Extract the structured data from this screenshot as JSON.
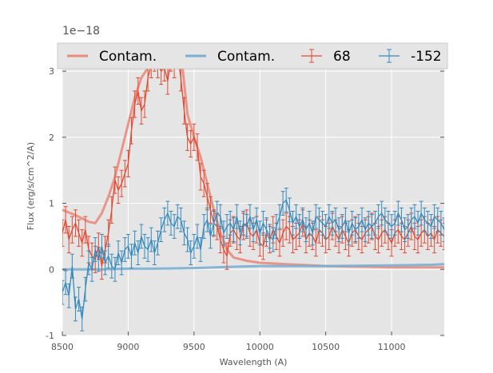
{
  "chart_data": {
    "type": "line",
    "xlabel": "Wavelength (A)",
    "ylabel": "Flux (erg/s/cm^2/A)",
    "offset_text": "1e−18",
    "xlim": [
      8500,
      11400
    ],
    "ylim": [
      -1,
      3.4
    ],
    "xticks": [
      8500,
      9000,
      9500,
      10000,
      10500,
      11000
    ],
    "yticks": [
      -1,
      0,
      1,
      2,
      3
    ],
    "grid": true,
    "legend_position": "top",
    "colors": {
      "red": "#e24a33",
      "blue": "#348abd",
      "red_contam": "#e88c7d",
      "blue_contam": "#7aaed2",
      "background": "#e5e5e5"
    },
    "series": [
      {
        "name": "Contam.",
        "kind": "contam",
        "color": "#e88c7d",
        "x": [
          8500,
          8600,
          8700,
          8750,
          8800,
          8850,
          8900,
          8950,
          9000,
          9050,
          9100,
          9150,
          9200,
          9250,
          9300,
          9350,
          9400,
          9450,
          9500,
          9550,
          9600,
          9650,
          9700,
          9750,
          9800,
          9900,
          10000,
          10200,
          10500,
          10800,
          11000,
          11400
        ],
        "y": [
          0.9,
          0.82,
          0.72,
          0.7,
          0.85,
          1.1,
          1.4,
          1.8,
          2.2,
          2.6,
          2.9,
          3.05,
          3.15,
          3.25,
          3.3,
          3.3,
          3.3,
          2.35,
          2.0,
          1.7,
          1.3,
          0.9,
          0.55,
          0.3,
          0.18,
          0.13,
          0.1,
          0.08,
          0.05,
          0.04,
          0.03,
          0.03
        ]
      },
      {
        "name": "Contam.",
        "kind": "contam",
        "color": "#7aaed2",
        "x": [
          8500,
          8800,
          9000,
          9200,
          9500,
          9800,
          10000,
          10500,
          11000,
          11300,
          11400
        ],
        "y": [
          0.0,
          0.0,
          0.01,
          0.01,
          0.02,
          0.04,
          0.05,
          0.05,
          0.06,
          0.07,
          0.08
        ]
      },
      {
        "name": "68",
        "kind": "errorbar",
        "color": "#e24a33",
        "x": [
          8500,
          8525,
          8550,
          8575,
          8600,
          8625,
          8650,
          8675,
          8700,
          8725,
          8750,
          8775,
          8800,
          8825,
          8850,
          8875,
          8900,
          8925,
          8950,
          8975,
          9000,
          9025,
          9050,
          9075,
          9100,
          9125,
          9150,
          9175,
          9200,
          9225,
          9250,
          9275,
          9300,
          9325,
          9350,
          9375,
          9400,
          9425,
          9450,
          9475,
          9500,
          9525,
          9550,
          9575,
          9600,
          9625,
          9650,
          9675,
          9700,
          9725,
          9750,
          9775,
          9800,
          9825,
          9850,
          9875,
          9900,
          9925,
          9950,
          9975,
          10000,
          10025,
          10050,
          10075,
          10100,
          10125,
          10150,
          10175,
          10200,
          10225,
          10250,
          10275,
          10300,
          10325,
          10350,
          10375,
          10400,
          10425,
          10450,
          10475,
          10500,
          10525,
          10550,
          10575,
          10600,
          10625,
          10650,
          10675,
          10700,
          10725,
          10750,
          10775,
          10800,
          10825,
          10850,
          10875,
          10900,
          10925,
          10950,
          10975,
          11000,
          11025,
          11050,
          11075,
          11100,
          11125,
          11150,
          11175,
          11200,
          11225,
          11250,
          11275,
          11300,
          11325,
          11350,
          11375,
          11400
        ],
        "y": [
          0.55,
          0.75,
          0.45,
          0.6,
          0.7,
          0.55,
          0.4,
          0.6,
          0.3,
          0.2,
          0.15,
          0.35,
          0.05,
          0.3,
          0.55,
          0.9,
          1.35,
          1.2,
          1.3,
          1.45,
          1.6,
          2.1,
          2.5,
          2.7,
          2.4,
          2.5,
          2.9,
          3.1,
          3.2,
          3.1,
          3.0,
          3.05,
          2.85,
          3.2,
          3.1,
          3.25,
          2.9,
          2.4,
          2.0,
          1.9,
          2.0,
          1.85,
          1.4,
          1.3,
          1.1,
          0.9,
          0.7,
          0.65,
          0.45,
          0.3,
          0.2,
          0.55,
          0.6,
          0.5,
          0.45,
          0.65,
          0.7,
          0.55,
          0.5,
          0.6,
          0.4,
          0.35,
          0.55,
          0.45,
          0.6,
          0.5,
          0.4,
          0.55,
          0.65,
          0.6,
          0.45,
          0.5,
          0.55,
          0.7,
          0.45,
          0.55,
          0.5,
          0.4,
          0.6,
          0.55,
          0.45,
          0.5,
          0.65,
          0.55,
          0.45,
          0.6,
          0.5,
          0.4,
          0.55,
          0.6,
          0.5,
          0.45,
          0.55,
          0.6,
          0.65,
          0.5,
          0.45,
          0.55,
          0.6,
          0.5,
          0.4,
          0.55,
          0.6,
          0.5,
          0.45,
          0.55,
          0.65,
          0.5,
          0.45,
          0.55,
          0.6,
          0.5,
          0.55,
          0.45,
          0.6,
          0.55,
          0.5
        ],
        "err": 0.2
      },
      {
        "name": "-152",
        "kind": "errorbar",
        "color": "#348abd",
        "x": [
          8500,
          8525,
          8550,
          8575,
          8600,
          8625,
          8650,
          8675,
          8700,
          8725,
          8750,
          8775,
          8800,
          8825,
          8850,
          8875,
          8900,
          8925,
          8950,
          8975,
          9000,
          9025,
          9050,
          9075,
          9100,
          9125,
          9150,
          9175,
          9200,
          9225,
          9250,
          9275,
          9300,
          9325,
          9350,
          9375,
          9400,
          9425,
          9450,
          9475,
          9500,
          9525,
          9550,
          9575,
          9600,
          9625,
          9650,
          9675,
          9700,
          9725,
          9750,
          9775,
          9800,
          9825,
          9850,
          9875,
          9900,
          9925,
          9950,
          9975,
          10000,
          10025,
          10050,
          10075,
          10100,
          10125,
          10150,
          10175,
          10200,
          10225,
          10250,
          10275,
          10300,
          10325,
          10350,
          10375,
          10400,
          10425,
          10450,
          10475,
          10500,
          10525,
          10550,
          10575,
          10600,
          10625,
          10650,
          10675,
          10700,
          10725,
          10750,
          10775,
          10800,
          10825,
          10850,
          10875,
          10900,
          10925,
          10950,
          10975,
          11000,
          11025,
          11050,
          11075,
          11100,
          11125,
          11150,
          11175,
          11200,
          11225,
          11250,
          11275,
          11300,
          11325,
          11350,
          11375,
          11400
        ],
        "y": [
          -0.35,
          -0.2,
          -0.4,
          0.05,
          -0.6,
          -0.45,
          -0.75,
          -0.3,
          0.1,
          0.0,
          0.3,
          0.15,
          0.35,
          0.1,
          0.2,
          0.05,
          0.0,
          0.25,
          0.1,
          0.3,
          0.35,
          0.2,
          0.4,
          0.25,
          0.5,
          0.35,
          0.3,
          0.45,
          0.25,
          0.4,
          0.6,
          0.75,
          0.85,
          0.7,
          0.65,
          0.8,
          0.75,
          0.55,
          0.45,
          0.25,
          0.35,
          0.5,
          0.3,
          0.65,
          0.75,
          0.5,
          0.7,
          0.85,
          0.8,
          0.55,
          0.65,
          0.7,
          0.6,
          0.8,
          0.55,
          0.7,
          0.65,
          0.8,
          0.6,
          0.75,
          0.55,
          0.7,
          0.6,
          0.5,
          0.45,
          0.65,
          0.8,
          1.0,
          1.05,
          0.9,
          0.7,
          0.8,
          0.65,
          0.75,
          0.6,
          0.7,
          0.55,
          0.8,
          0.75,
          0.7,
          0.65,
          0.8,
          0.7,
          0.75,
          0.6,
          0.65,
          0.75,
          0.55,
          0.7,
          0.6,
          0.65,
          0.75,
          0.6,
          0.7,
          0.65,
          0.7,
          0.8,
          0.85,
          0.75,
          0.7,
          0.65,
          0.7,
          0.85,
          0.75,
          0.6,
          0.65,
          0.75,
          0.8,
          0.7,
          0.85,
          0.75,
          0.7,
          0.65,
          0.8,
          0.75,
          0.7,
          0.6
        ],
        "err": 0.18
      }
    ]
  }
}
